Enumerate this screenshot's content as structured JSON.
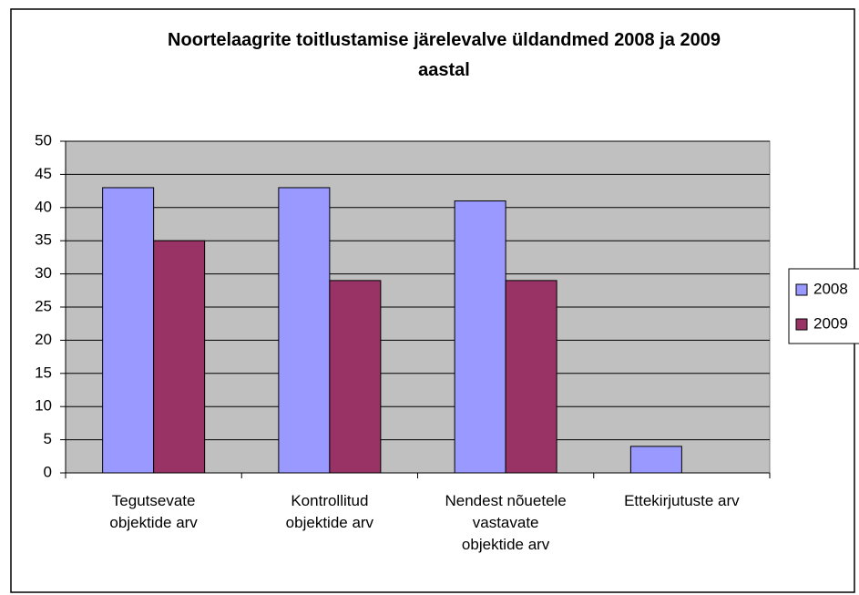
{
  "chart_data": {
    "type": "bar",
    "title": "Noortelaagrite toitlustamise järelevalve üldandmed  2008 ja 2009\naastal",
    "categories": [
      "Tegutsevate\nobjektide arv",
      "Kontrollitud\nobjektide arv",
      "Nendest nõuetele\nvastavate\nobjektide arv",
      "Ettekirjutuste arv"
    ],
    "series": [
      {
        "name": "2008",
        "color": "#9999ff",
        "values": [
          43,
          43,
          41,
          4
        ]
      },
      {
        "name": "2009",
        "color": "#993366",
        "values": [
          35,
          29,
          29,
          0
        ]
      }
    ],
    "ylim": [
      0,
      50
    ],
    "yticks": [
      0,
      5,
      10,
      15,
      20,
      25,
      30,
      35,
      40,
      45,
      50
    ],
    "grid": true,
    "legend": "right"
  }
}
